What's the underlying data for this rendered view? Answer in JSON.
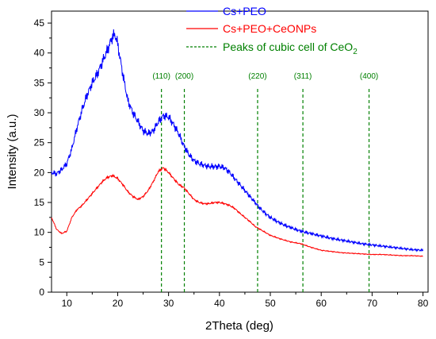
{
  "chart_data": {
    "type": "line",
    "xlabel": "2Theta (deg)",
    "ylabel": "Intensity (a.u.)",
    "xlim": [
      7,
      81
    ],
    "ylim": [
      0,
      47
    ],
    "xticks": [
      10,
      20,
      30,
      40,
      50,
      60,
      70,
      80
    ],
    "yticks": [
      0,
      5,
      10,
      15,
      20,
      25,
      30,
      35,
      40,
      45
    ],
    "grid": false,
    "legend_position": "top-left-inside",
    "series": [
      {
        "name": "Cs+PEO",
        "color": "#0000ff",
        "style": "solid",
        "x": [
          7,
          8,
          9,
          10,
          11,
          12,
          13,
          14,
          15,
          16,
          17,
          18,
          19,
          19.5,
          20,
          21,
          22,
          23,
          24,
          25,
          26,
          27,
          28,
          29,
          30,
          31,
          32,
          33,
          34,
          35,
          36,
          37,
          38,
          39,
          40,
          41,
          42,
          43,
          44,
          45,
          46,
          47,
          48,
          49,
          50,
          52,
          54,
          56,
          58,
          60,
          62,
          64,
          66,
          68,
          70,
          72,
          74,
          76,
          78,
          80
        ],
        "y": [
          20,
          19.8,
          20.5,
          21.5,
          24,
          27.5,
          30.5,
          33,
          35,
          36.5,
          38.5,
          40.5,
          42.8,
          43,
          41.5,
          36.5,
          32,
          30,
          28.5,
          27,
          26.5,
          27,
          28.5,
          29.5,
          29.3,
          28,
          26.5,
          24.5,
          23,
          22,
          21.5,
          21.2,
          21,
          21,
          21,
          20.8,
          20,
          19,
          18,
          17,
          16,
          15,
          14,
          13.2,
          12.5,
          11.5,
          10.8,
          10.2,
          9.8,
          9.4,
          9,
          8.7,
          8.4,
          8.1,
          7.9,
          7.7,
          7.5,
          7.3,
          7.1,
          7
        ]
      },
      {
        "name": "Cs+PEO+CeONPs",
        "color": "#ff0000",
        "style": "solid",
        "x": [
          7,
          8,
          9,
          10,
          11,
          12,
          13,
          14,
          15,
          16,
          17,
          18,
          19,
          20,
          21,
          22,
          23,
          24,
          25,
          26,
          27,
          28,
          29,
          30,
          31,
          32,
          33,
          34,
          35,
          36,
          37,
          38,
          39,
          40,
          41,
          42,
          43,
          44,
          45,
          46,
          47,
          48,
          49,
          50,
          52,
          54,
          56,
          58,
          60,
          62,
          64,
          66,
          68,
          70,
          72,
          74,
          76,
          78,
          80
        ],
        "y": [
          12.5,
          10.5,
          9.8,
          10.2,
          12.5,
          13.8,
          14.5,
          15.5,
          16.5,
          17.5,
          18.5,
          19.2,
          19.5,
          19,
          18,
          16.8,
          16,
          15.5,
          16,
          17,
          18.5,
          20.2,
          20.8,
          20,
          19,
          18,
          17.5,
          16.5,
          15.5,
          15,
          14.8,
          14.8,
          15,
          15,
          14.8,
          14.5,
          14,
          13.2,
          12.5,
          11.8,
          11,
          10.5,
          10,
          9.5,
          8.9,
          8.4,
          8.1,
          7.5,
          7,
          6.8,
          6.6,
          6.5,
          6.4,
          6.3,
          6.3,
          6.2,
          6.1,
          6.1,
          6
        ]
      }
    ],
    "peaks": {
      "name": "Peaks of cubic cell of CeO",
      "name_subscript": "2",
      "color": "#008000",
      "style": "dashed",
      "positions": [
        28.6,
        33.1,
        47.5,
        56.4,
        69.4
      ],
      "labels": [
        "(110)",
        "(200)",
        "(220)",
        "(311)",
        "(400)"
      ]
    }
  }
}
